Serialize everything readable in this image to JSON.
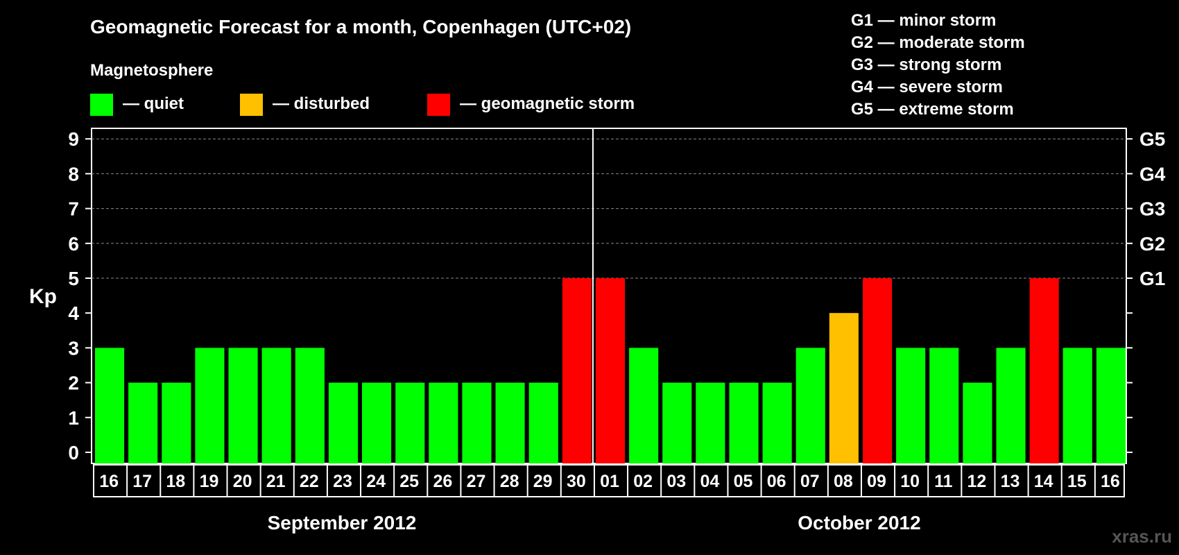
{
  "title": "Geomagnetic Forecast for a month, Copenhagen (UTC+02)",
  "legend": {
    "heading": "Magnetosphere",
    "items": [
      {
        "label": "— quiet",
        "color": "#00ff00"
      },
      {
        "label": "— disturbed",
        "color": "#ffc000"
      },
      {
        "label": "— geomagnetic storm",
        "color": "#ff0000"
      }
    ]
  },
  "storm_scale": [
    "G1 — minor storm",
    "G2 — moderate storm",
    "G3 — strong storm",
    "G4 — severe storm",
    "G5 — extreme storm"
  ],
  "watermark": "xras.ru",
  "chart_data": {
    "type": "bar",
    "title": "Geomagnetic Forecast for a month, Copenhagen (UTC+02)",
    "ylabel": "Kp",
    "ylim": [
      0,
      9
    ],
    "yticks": [
      "0",
      "1",
      "2",
      "3",
      "4",
      "5",
      "6",
      "7",
      "8",
      "9"
    ],
    "right_ticks": [
      {
        "kp": 5,
        "label": "G1"
      },
      {
        "kp": 6,
        "label": "G2"
      },
      {
        "kp": 7,
        "label": "G3"
      },
      {
        "kp": 8,
        "label": "G4"
      },
      {
        "kp": 9,
        "label": "G5"
      }
    ],
    "grid": "dashed horizontal at Kp 5–9",
    "categories": [
      "16",
      "17",
      "18",
      "19",
      "20",
      "21",
      "22",
      "23",
      "24",
      "25",
      "26",
      "27",
      "28",
      "29",
      "30",
      "01",
      "02",
      "03",
      "04",
      "05",
      "06",
      "07",
      "08",
      "09",
      "10",
      "11",
      "12",
      "13",
      "14",
      "15",
      "16"
    ],
    "values": [
      3,
      2,
      2,
      3,
      3,
      3,
      3,
      2,
      2,
      2,
      2,
      2,
      2,
      2,
      5,
      5,
      3,
      2,
      2,
      2,
      2,
      3,
      4,
      5,
      3,
      3,
      2,
      3,
      5,
      3,
      3
    ],
    "months": [
      {
        "label": "September 2012",
        "from": 0,
        "to": 14
      },
      {
        "label": "October 2012",
        "from": 15,
        "to": 30
      }
    ],
    "month_divider_after_index": 14,
    "colors": {
      "quiet": "#00ff00",
      "disturbed": "#ffc000",
      "storm": "#ff0000"
    }
  }
}
